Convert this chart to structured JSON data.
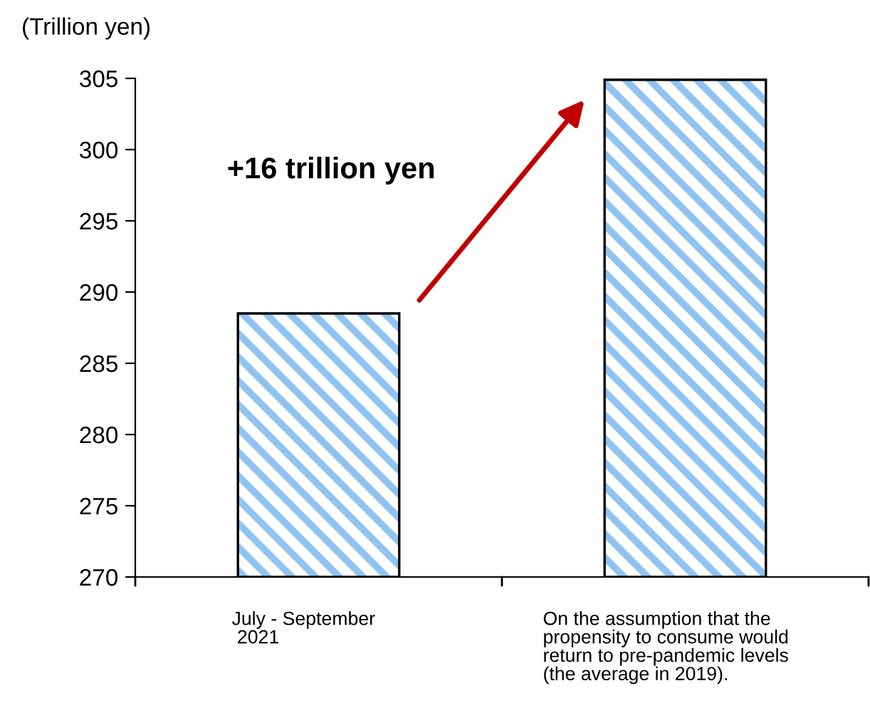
{
  "chart_data": {
    "type": "bar",
    "categories": [
      "July - September\n 2021",
      "On the assumption that the\npropensity to consume would\nreturn to pre-pandemic levels\n(the average in 2019)."
    ],
    "values": [
      288.5,
      304.9
    ],
    "color": "#8fc4f2",
    "ylabel": "(Trillion yen)",
    "ylim": [
      270,
      305
    ],
    "yticks": [
      270,
      275,
      280,
      285,
      290,
      295,
      300,
      305
    ],
    "annotations": [
      "+16 trillion yen"
    ],
    "grid": false,
    "legend": false
  }
}
